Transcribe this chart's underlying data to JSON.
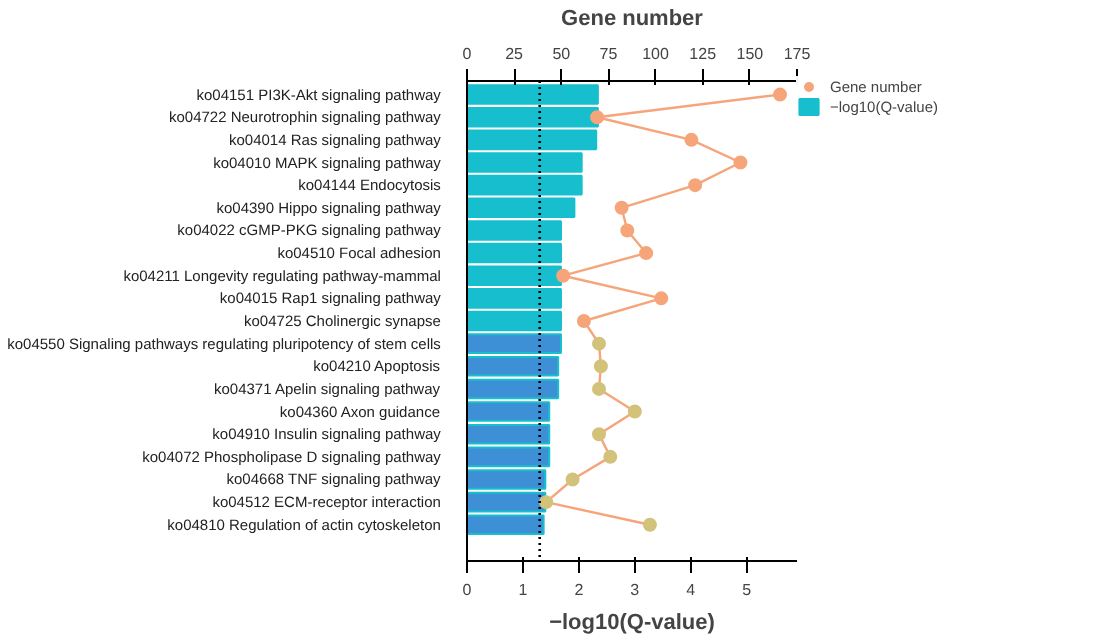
{
  "chart_data": {
    "type": "bar",
    "orientation": "horizontal",
    "xlabel": "−log10(Q-value)",
    "x2label": "Gene number",
    "categories": [
      "ko04151  PI3K-Akt signaling pathway",
      "ko04722  Neurotrophin signaling pathway",
      "ko04014  Ras signaling pathway",
      "ko04010  MAPK signaling pathway",
      "ko04144  Endocytosis",
      "ko04390  Hippo signaling pathway",
      "ko04022  cGMP-PKG signaling pathway",
      "ko04510  Focal adhesion",
      "ko04211  Longevity regulating pathway-mammal",
      "ko04015  Rap1 signaling pathway",
      "ko04725  Cholinergic synapse",
      "ko04550  Signaling pathways regulating pluripotency of stem cells",
      "ko04210  Apoptosis",
      "ko04371  Apelin signaling pathway",
      "ko04360  Axon guidance",
      "ko04910  Insulin signaling pathway",
      "ko04072  Phospholipase D signaling pathway",
      "ko04668  TNF signaling pathway",
      "ko04512  ECM-receptor interaction",
      "ko04810  Regulation of actin cytoskeleton"
    ],
    "series": [
      {
        "name": "−log10(Q-value)",
        "color": "#17bfce",
        "colors": [
          "#17bfce",
          "#17bfce",
          "#17bfce",
          "#17bfce",
          "#17bfce",
          "#17bfce",
          "#17bfce",
          "#17bfce",
          "#17bfce",
          "#17bfce",
          "#17bfce",
          "#3d8fd6",
          "#3d8fd6",
          "#3d8fd6",
          "#3d8fd6",
          "#3d8fd6",
          "#3d8fd6",
          "#3d8fd6",
          "#3d8fd6",
          "#3d8fd6"
        ],
        "values": [
          2.34,
          2.34,
          2.31,
          2.05,
          2.05,
          1.92,
          1.68,
          1.68,
          1.68,
          1.68,
          1.68,
          1.68,
          1.63,
          1.63,
          1.47,
          1.47,
          1.47,
          1.4,
          1.4,
          1.37
        ]
      },
      {
        "name": "Gene number",
        "type": "line",
        "axis": "x2",
        "color": "#f6a57a",
        "colors": [
          "#f6a57a",
          "#f6a57a",
          "#f6a57a",
          "#f6a57a",
          "#f6a57a",
          "#f6a57a",
          "#f6a57a",
          "#f6a57a",
          "#f6a57a",
          "#f6a57a",
          "#f6a57a",
          "#d2c27a",
          "#d2c27a",
          "#d2c27a",
          "#d2c27a",
          "#d2c27a",
          "#d2c27a",
          "#d2c27a",
          "#d2c27a",
          "#d2c27a"
        ],
        "values": [
          166,
          69,
          119,
          145,
          121,
          82,
          85,
          95,
          51,
          103,
          62,
          70,
          71,
          70,
          89,
          70,
          76,
          56,
          42,
          97
        ]
      }
    ],
    "xlim": [
      0,
      5.9
    ],
    "xticks": [
      0,
      1,
      2,
      3,
      4,
      5
    ],
    "x2lim": [
      0,
      175
    ],
    "x2ticks": [
      0,
      25,
      50,
      75,
      100,
      125,
      150,
      175
    ],
    "ref_lines": [
      {
        "axis": "x",
        "value": 1.3,
        "color": "#000000",
        "line_style": "dotted"
      }
    ],
    "marker": "circle",
    "line_style": "solid",
    "grid": false,
    "legend": "top right"
  }
}
